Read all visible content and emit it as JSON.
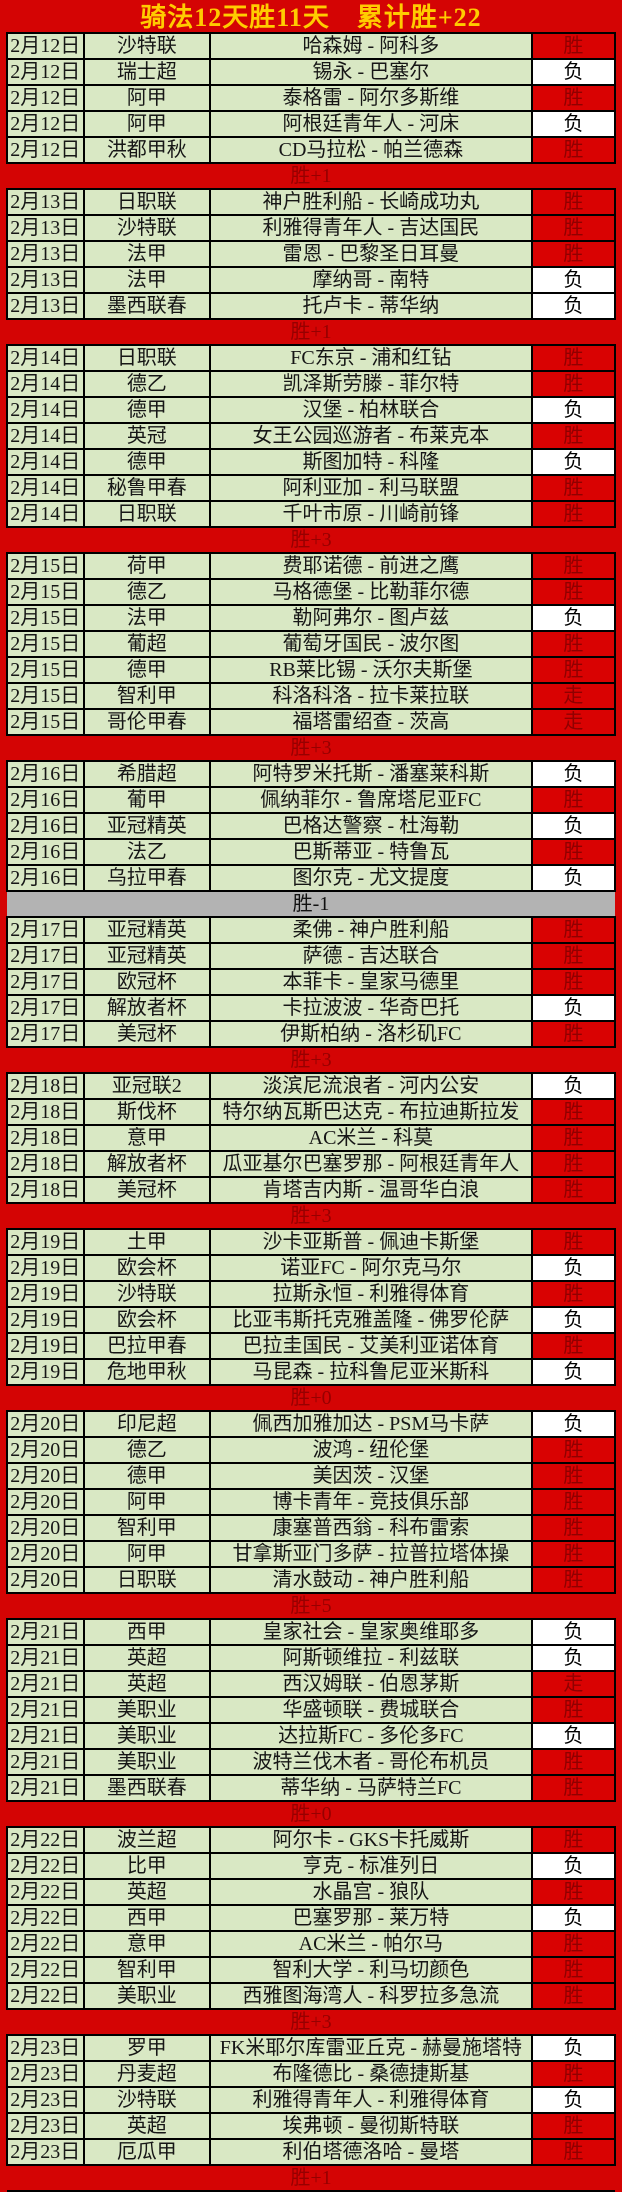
{
  "title": "骑法12天胜11天　累计胜+22",
  "legend": {
    "win": "胜",
    "loss": "负",
    "push": "走"
  },
  "colors": {
    "frame_red": "#d40404",
    "row_green": "#d9e8c4",
    "win_cell_bg": "#d90202",
    "win_cell_text": "#8f0000",
    "loss_cell_bg": "#ffffff",
    "loss_cell_text": "#000000",
    "summary_gray_bg": "#b3b3b3",
    "title_yellow": "#ffcc00",
    "border_black": "#000000"
  },
  "days": [
    {
      "summary": "胜+1",
      "summary_variant": "red",
      "matches": [
        {
          "date": "2月12日",
          "league": "沙特联",
          "match": "哈森姆 - 阿科多",
          "result": "胜"
        },
        {
          "date": "2月12日",
          "league": "瑞士超",
          "match": "锡永 - 巴塞尔",
          "result": "负"
        },
        {
          "date": "2月12日",
          "league": "阿甲",
          "match": "泰格雷 - 阿尔多斯维",
          "result": "胜"
        },
        {
          "date": "2月12日",
          "league": "阿甲",
          "match": "阿根廷青年人 - 河床",
          "result": "负"
        },
        {
          "date": "2月12日",
          "league": "洪都甲秋",
          "match": "CD马拉松 - 帕兰德森",
          "result": "胜"
        }
      ]
    },
    {
      "summary": "胜+1",
      "summary_variant": "red",
      "matches": [
        {
          "date": "2月13日",
          "league": "日职联",
          "match": "神户胜利船 - 长崎成功丸",
          "result": "胜"
        },
        {
          "date": "2月13日",
          "league": "沙特联",
          "match": "利雅得青年人 - 吉达国民",
          "result": "胜"
        },
        {
          "date": "2月13日",
          "league": "法甲",
          "match": "雷恩 - 巴黎圣日耳曼",
          "result": "胜"
        },
        {
          "date": "2月13日",
          "league": "法甲",
          "match": "摩纳哥 - 南特",
          "result": "负"
        },
        {
          "date": "2月13日",
          "league": "墨西联春",
          "match": "托卢卡 - 蒂华纳",
          "result": "负"
        }
      ]
    },
    {
      "summary": "胜+3",
      "summary_variant": "red",
      "matches": [
        {
          "date": "2月14日",
          "league": "日职联",
          "match": "FC东京 - 浦和红钻",
          "result": "胜"
        },
        {
          "date": "2月14日",
          "league": "德乙",
          "match": "凯泽斯劳滕 - 菲尔特",
          "result": "胜"
        },
        {
          "date": "2月14日",
          "league": "德甲",
          "match": "汉堡 - 柏林联合",
          "result": "负"
        },
        {
          "date": "2月14日",
          "league": "英冠",
          "match": "女王公园巡游者 - 布莱克本",
          "result": "胜"
        },
        {
          "date": "2月14日",
          "league": "德甲",
          "match": "斯图加特 - 科隆",
          "result": "负"
        },
        {
          "date": "2月14日",
          "league": "秘鲁甲春",
          "match": "阿利亚加 - 利马联盟",
          "result": "胜"
        },
        {
          "date": "2月14日",
          "league": "日职联",
          "match": "千叶市原 - 川崎前锋",
          "result": "胜"
        }
      ]
    },
    {
      "summary": "胜+3",
      "summary_variant": "red",
      "matches": [
        {
          "date": "2月15日",
          "league": "荷甲",
          "match": "费耶诺德 - 前进之鹰",
          "result": "胜"
        },
        {
          "date": "2月15日",
          "league": "德乙",
          "match": "马格德堡 - 比勒菲尔德",
          "result": "胜"
        },
        {
          "date": "2月15日",
          "league": "法甲",
          "match": "勒阿弗尔 - 图卢兹",
          "result": "负"
        },
        {
          "date": "2月15日",
          "league": "葡超",
          "match": "葡萄牙国民 - 波尔图",
          "result": "胜"
        },
        {
          "date": "2月15日",
          "league": "德甲",
          "match": "RB莱比锡 - 沃尔夫斯堡",
          "result": "胜"
        },
        {
          "date": "2月15日",
          "league": "智利甲",
          "match": "科洛科洛 - 拉卡莱拉联",
          "result": "走"
        },
        {
          "date": "2月15日",
          "league": "哥伦甲春",
          "match": "福塔雷绍查 - 茨高",
          "result": "走"
        }
      ]
    },
    {
      "summary": "胜-1",
      "summary_variant": "gray",
      "matches": [
        {
          "date": "2月16日",
          "league": "希腊超",
          "match": "阿特罗米托斯 - 潘塞莱科斯",
          "result": "负"
        },
        {
          "date": "2月16日",
          "league": "葡甲",
          "match": "佩纳菲尔 - 鲁席塔尼亚FC",
          "result": "胜"
        },
        {
          "date": "2月16日",
          "league": "亚冠精英",
          "match": "巴格达警察 - 杜海勒",
          "result": "负"
        },
        {
          "date": "2月16日",
          "league": "法乙",
          "match": "巴斯蒂亚 - 特鲁瓦",
          "result": "胜"
        },
        {
          "date": "2月16日",
          "league": "乌拉甲春",
          "match": "图尔克 - 尤文提度",
          "result": "负"
        }
      ]
    },
    {
      "summary": "胜+3",
      "summary_variant": "red",
      "matches": [
        {
          "date": "2月17日",
          "league": "亚冠精英",
          "match": "柔佛 - 神户胜利船",
          "result": "胜"
        },
        {
          "date": "2月17日",
          "league": "亚冠精英",
          "match": "萨德 - 吉达联合",
          "result": "胜"
        },
        {
          "date": "2月17日",
          "league": "欧冠杯",
          "match": "本菲卡 - 皇家马德里",
          "result": "胜"
        },
        {
          "date": "2月17日",
          "league": "解放者杯",
          "match": "卡拉波波 - 华奇巴托",
          "result": "负"
        },
        {
          "date": "2月17日",
          "league": "美冠杯",
          "match": "伊斯柏纳 - 洛杉矶FC",
          "result": "胜"
        }
      ]
    },
    {
      "summary": "胜+3",
      "summary_variant": "red",
      "matches": [
        {
          "date": "2月18日",
          "league": "亚冠联2",
          "match": "淡滨尼流浪者 - 河内公安",
          "result": "负"
        },
        {
          "date": "2月18日",
          "league": "斯伐杯",
          "match": "特尔纳瓦斯巴达克 - 布拉迪斯拉发",
          "result": "胜"
        },
        {
          "date": "2月18日",
          "league": "意甲",
          "match": "AC米兰 - 科莫",
          "result": "胜"
        },
        {
          "date": "2月18日",
          "league": "解放者杯",
          "match": "瓜亚基尔巴塞罗那 - 阿根廷青年人",
          "result": "胜"
        },
        {
          "date": "2月18日",
          "league": "美冠杯",
          "match": "肯塔吉内斯 - 温哥华白浪",
          "result": "胜"
        }
      ]
    },
    {
      "summary": "胜+0",
      "summary_variant": "red",
      "matches": [
        {
          "date": "2月19日",
          "league": "土甲",
          "match": "沙卡亚斯普 - 佩迪卡斯堡",
          "result": "胜"
        },
        {
          "date": "2月19日",
          "league": "欧会杯",
          "match": "诺亚FC - 阿尔克马尔",
          "result": "负"
        },
        {
          "date": "2月19日",
          "league": "沙特联",
          "match": "拉斯永恒 - 利雅得体育",
          "result": "胜"
        },
        {
          "date": "2月19日",
          "league": "欧会杯",
          "match": "比亚韦斯托克雅盖隆 - 佛罗伦萨",
          "result": "负"
        },
        {
          "date": "2月19日",
          "league": "巴拉甲春",
          "match": "巴拉圭国民 - 艾美利亚诺体育",
          "result": "胜"
        },
        {
          "date": "2月19日",
          "league": "危地甲秋",
          "match": "马昆森 - 拉科鲁尼亚米斯科",
          "result": "负"
        }
      ]
    },
    {
      "summary": "胜+5",
      "summary_variant": "red",
      "matches": [
        {
          "date": "2月20日",
          "league": "印尼超",
          "match": "佩西加雅加达 - PSM马卡萨",
          "result": "负"
        },
        {
          "date": "2月20日",
          "league": "德乙",
          "match": "波鸿 - 纽伦堡",
          "result": "胜"
        },
        {
          "date": "2月20日",
          "league": "德甲",
          "match": "美因茨 - 汉堡",
          "result": "胜"
        },
        {
          "date": "2月20日",
          "league": "阿甲",
          "match": "博卡青年 - 竞技俱乐部",
          "result": "胜"
        },
        {
          "date": "2月20日",
          "league": "智利甲",
          "match": "康塞普西翁 - 科布雷索",
          "result": "胜"
        },
        {
          "date": "2月20日",
          "league": "阿甲",
          "match": "甘拿斯亚门多萨 - 拉普拉塔体操",
          "result": "胜"
        },
        {
          "date": "2月20日",
          "league": "日职联",
          "match": "清水鼓动 - 神户胜利船",
          "result": "胜"
        }
      ]
    },
    {
      "summary": "胜+0",
      "summary_variant": "red",
      "matches": [
        {
          "date": "2月21日",
          "league": "西甲",
          "match": "皇家社会 - 皇家奥维耶多",
          "result": "负"
        },
        {
          "date": "2月21日",
          "league": "英超",
          "match": "阿斯顿维拉 - 利兹联",
          "result": "负"
        },
        {
          "date": "2月21日",
          "league": "英超",
          "match": "西汉姆联 - 伯恩茅斯",
          "result": "走"
        },
        {
          "date": "2月21日",
          "league": "美职业",
          "match": "华盛顿联 - 费城联合",
          "result": "胜"
        },
        {
          "date": "2月21日",
          "league": "美职业",
          "match": "达拉斯FC - 多伦多FC",
          "result": "负"
        },
        {
          "date": "2月21日",
          "league": "美职业",
          "match": "波特兰伐木者 - 哥伦布机员",
          "result": "胜"
        },
        {
          "date": "2月21日",
          "league": "墨西联春",
          "match": "蒂华纳 - 马萨特兰FC",
          "result": "胜"
        }
      ]
    },
    {
      "summary": "胜+3",
      "summary_variant": "red",
      "matches": [
        {
          "date": "2月22日",
          "league": "波兰超",
          "match": "阿尔卡 - GKS卡托威斯",
          "result": "胜"
        },
        {
          "date": "2月22日",
          "league": "比甲",
          "match": "亨克 - 标准列日",
          "result": "负"
        },
        {
          "date": "2月22日",
          "league": "英超",
          "match": "水晶宫 - 狼队",
          "result": "胜"
        },
        {
          "date": "2月22日",
          "league": "西甲",
          "match": "巴塞罗那 - 莱万特",
          "result": "负"
        },
        {
          "date": "2月22日",
          "league": "意甲",
          "match": "AC米兰 - 帕尔马",
          "result": "胜"
        },
        {
          "date": "2月22日",
          "league": "智利甲",
          "match": "智利大学 - 利马切颜色",
          "result": "胜"
        },
        {
          "date": "2月22日",
          "league": "美职业",
          "match": "西雅图海湾人 - 科罗拉多急流",
          "result": "胜"
        }
      ]
    },
    {
      "summary": "胜+1",
      "summary_variant": "red",
      "matches": [
        {
          "date": "2月23日",
          "league": "罗甲",
          "match": "FK米耶尔库雷亚丘克 - 赫曼施塔特",
          "result": "负"
        },
        {
          "date": "2月23日",
          "league": "丹麦超",
          "match": "布隆德比 - 桑德捷斯基",
          "result": "胜"
        },
        {
          "date": "2月23日",
          "league": "沙特联",
          "match": "利雅得青年人 - 利雅得体育",
          "result": "负"
        },
        {
          "date": "2月23日",
          "league": "英超",
          "match": "埃弗顿 - 曼彻斯特联",
          "result": "胜"
        },
        {
          "date": "2月23日",
          "league": "厄瓜甲",
          "match": "利伯塔德洛哈 - 曼塔",
          "result": "胜"
        }
      ]
    }
  ]
}
